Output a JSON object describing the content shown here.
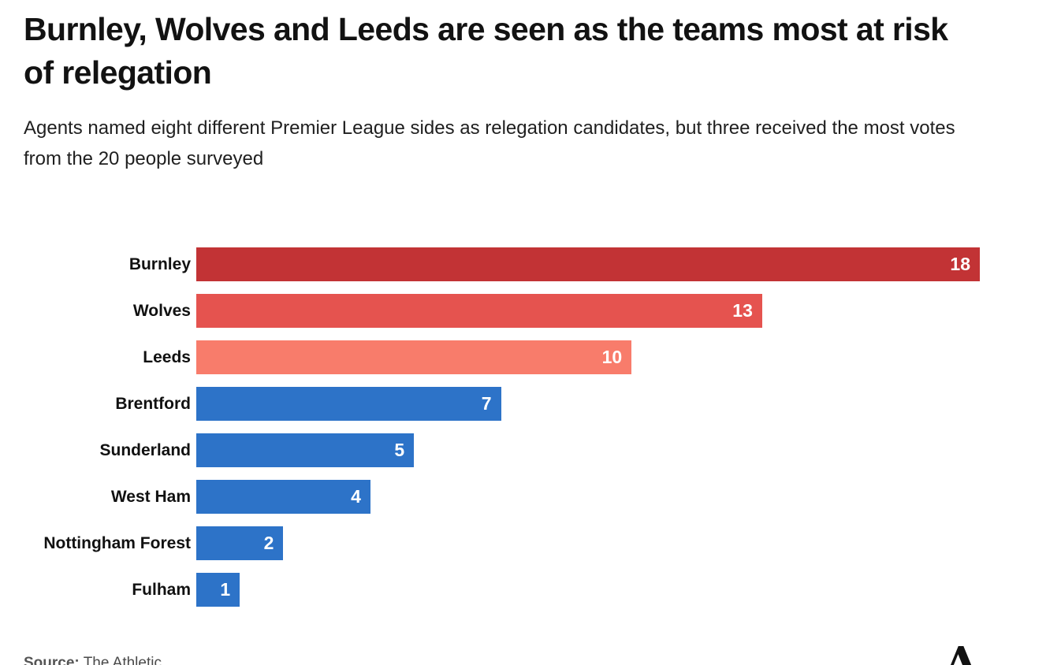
{
  "page": {
    "title": "Burnley, Wolves and Leeds are seen as the teams most at risk of relegation",
    "subtitle": "Agents named eight different Premier League sides as relegation candidates, but three received the most votes from the 20 people surveyed",
    "source_label": "Source:",
    "source_value": "The Athletic",
    "logo_glyph": "A"
  },
  "chart_data": {
    "type": "bar",
    "orientation": "horizontal",
    "title": "Burnley, Wolves and Leeds are seen as the teams most at risk of relegation",
    "subtitle": "Agents named eight different Premier League sides as relegation candidates, but three received the most votes from the 20 people surveyed",
    "xlabel": "",
    "ylabel": "",
    "xlim": [
      0,
      18
    ],
    "grid": false,
    "legend": false,
    "value_labels": "inside-end",
    "value_label_color": "#ffffff",
    "categories": [
      "Burnley",
      "Wolves",
      "Leeds",
      "Brentford",
      "Sunderland",
      "West Ham",
      "Nottingham Forest",
      "Fulham"
    ],
    "values": [
      18,
      13,
      10,
      7,
      5,
      4,
      2,
      1
    ],
    "bar_colors": [
      "#c23335",
      "#e5534f",
      "#f87c6b",
      "#2d73c8",
      "#2d73c8",
      "#2d73c8",
      "#2d73c8",
      "#2d73c8"
    ]
  }
}
